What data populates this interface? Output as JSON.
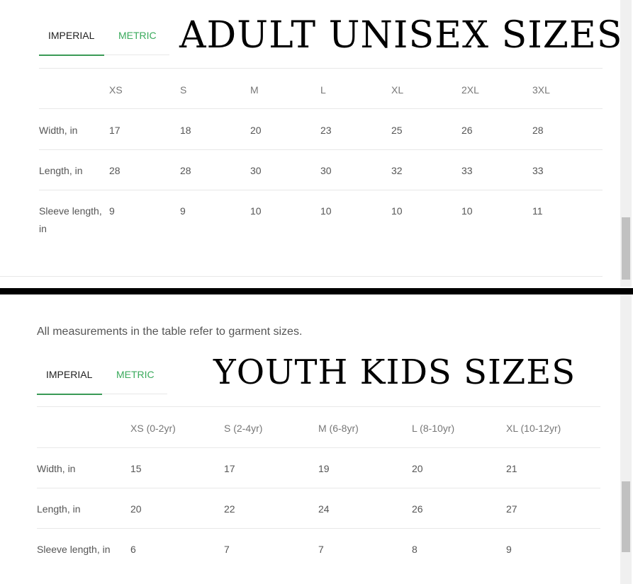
{
  "adult": {
    "tabs": [
      {
        "label": "IMPERIAL",
        "active": true
      },
      {
        "label": "METRIC",
        "active": false
      }
    ],
    "title": "ADULT UNISEX SIZES",
    "columns": [
      "",
      "XS",
      "S",
      "M",
      "L",
      "XL",
      "2XL",
      "3XL"
    ],
    "rows": [
      [
        "Width, in",
        "17",
        "18",
        "20",
        "23",
        "25",
        "26",
        "28"
      ],
      [
        "Length, in",
        "28",
        "28",
        "30",
        "30",
        "32",
        "33",
        "33"
      ],
      [
        "Sleeve length, in",
        "9",
        "9",
        "10",
        "10",
        "10",
        "10",
        "11"
      ]
    ]
  },
  "youth": {
    "note": "All measurements in the table refer to garment sizes.",
    "tabs": [
      {
        "label": "IMPERIAL",
        "active": true
      },
      {
        "label": "METRIC",
        "active": false
      }
    ],
    "title": "YOUTH KIDS SIZES",
    "columns": [
      "",
      "XS (0-2yr)",
      "S (2-4yr)",
      "M (6-8yr)",
      "L (8-10yr)",
      "XL (10-12yr)"
    ],
    "rows": [
      [
        "Width, in",
        "15",
        "17",
        "19",
        "20",
        "21"
      ],
      [
        "Length, in",
        "20",
        "22",
        "24",
        "26",
        "27"
      ],
      [
        "Sleeve length, in",
        "6",
        "7",
        "7",
        "8",
        "9"
      ]
    ]
  },
  "colors": {
    "accent": "#3aaa5c",
    "divider": "#000000"
  }
}
